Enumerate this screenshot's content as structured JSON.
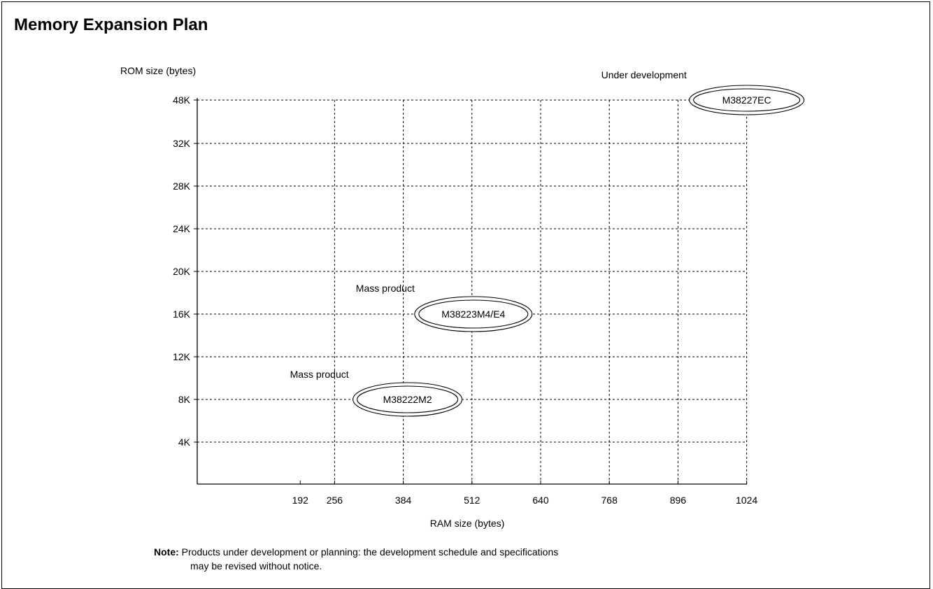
{
  "title": "Memory Expansion Plan",
  "note": {
    "label": "Note:",
    "line1": "Products under development or planning: the development schedule and specifications",
    "line2": "may be revised without notice."
  },
  "chart_data": {
    "type": "scatter",
    "title": "Memory Expansion Plan",
    "xlabel": "RAM size (bytes)",
    "ylabel": "ROM size (bytes)",
    "x_ticks": [
      "192",
      "256",
      "384",
      "512",
      "640",
      "768",
      "896",
      "1024"
    ],
    "y_ticks": [
      "4K",
      "8K",
      "12K",
      "16K",
      "20K",
      "24K",
      "28K",
      "32K",
      "48K"
    ],
    "grid": true,
    "points": [
      {
        "name": "M38222M2",
        "status": "Mass product",
        "ram": 384,
        "rom": "8K"
      },
      {
        "name": "M38223M4/E4",
        "status": "Mass product",
        "ram": 512,
        "rom": "16K"
      },
      {
        "name": "M38227EC",
        "status": "Under development",
        "ram": 1024,
        "rom": "48K"
      }
    ]
  }
}
